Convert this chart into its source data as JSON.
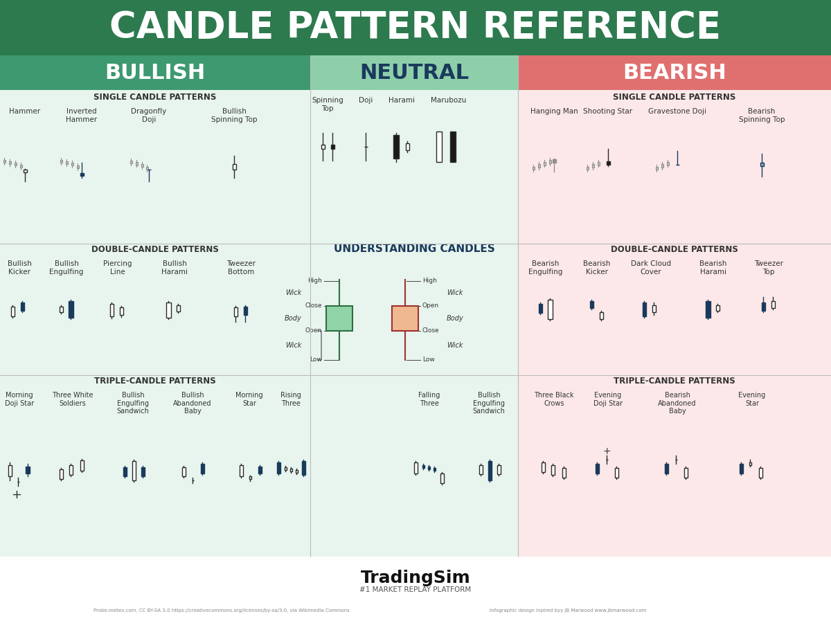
{
  "title": "CANDLE PATTERN REFERENCE",
  "title_bg": "#2d7a4f",
  "title_color": "#ffffff",
  "title_fontsize": 38,
  "bg_color": "#ffffff",
  "bull_header_bg": "#3d9970",
  "neut_header_bg": "#8ecfaa",
  "bear_header_bg": "#e07070",
  "bull_section_bg": "#e8f5ee",
  "neut_section_bg": "#e8f5ee",
  "bear_section_bg": "#fce8e8",
  "WHITE": "#ffffff",
  "DARK_NAVY": "#1a3a5c",
  "LIGHT_STEEL": "#7fa8c8",
  "GRAY": "#909090",
  "LIGHT_GRAY": "#c0c0c0",
  "GREEN_FILL": "#90d4a8",
  "SALMON": "#f0b890",
  "BLACK": "#1a1a1a",
  "OUTLINE": "#2a2a2a",
  "footer_left": "Probe-meteo.com, CC BY-SA 3.0 https://creativecommons.org/licenses/by-sa/3.0, via Wikimedia Commons",
  "footer_right": "Infographic design inpired byy JB Marwood www.jbmarwood.com"
}
